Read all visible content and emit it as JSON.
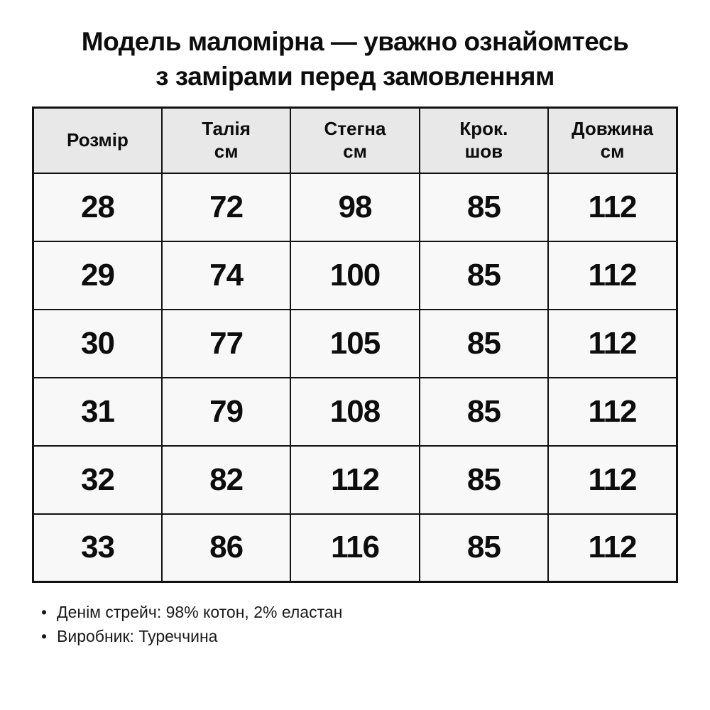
{
  "title": {
    "line1": "Модель маломірна — уважно ознайомтесь",
    "line2": "з замірами перед замовленням"
  },
  "table": {
    "headers": [
      {
        "line1": "Розмір",
        "line2": ""
      },
      {
        "line1": "Талія",
        "line2": "см"
      },
      {
        "line1": "Стегна",
        "line2": "см"
      },
      {
        "line1": "Крок.",
        "line2": "шов"
      },
      {
        "line1": "Довжина",
        "line2": "см"
      }
    ],
    "rows": [
      [
        "28",
        "72",
        "98",
        "85",
        "112"
      ],
      [
        "29",
        "74",
        "100",
        "85",
        "112"
      ],
      [
        "30",
        "77",
        "105",
        "85",
        "112"
      ],
      [
        "31",
        "79",
        "108",
        "85",
        "112"
      ],
      [
        "32",
        "82",
        "112",
        "85",
        "112"
      ],
      [
        "33",
        "86",
        "116",
        "85",
        "112"
      ]
    ]
  },
  "notes": [
    "Денім стрейч: 98% котон, 2% еластан",
    "Виробник: Туреччина"
  ],
  "colors": {
    "page_bg": "#ffffff",
    "header_bg": "#e8e8e8",
    "cell_bg": "#f8f8f8",
    "border": "#111111",
    "text": "#0d0d0d"
  }
}
